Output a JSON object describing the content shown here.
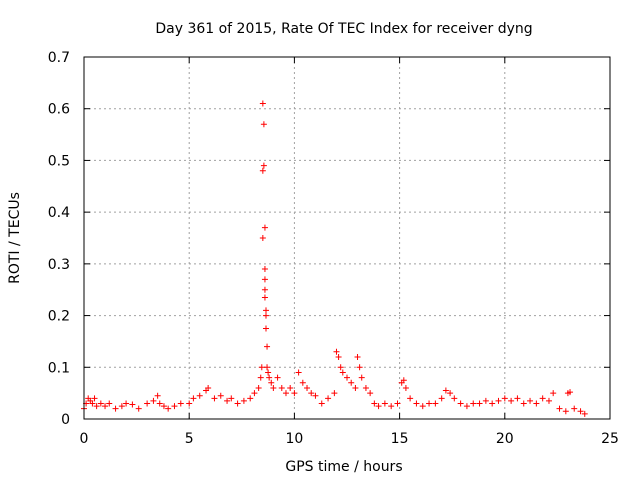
{
  "chart_data": {
    "type": "scatter",
    "title": "Day 361 of 2015, Rate Of TEC Index for receiver dyng",
    "xlabel": "GPS time / hours",
    "ylabel": "ROTI / TECUs",
    "xlim": [
      0,
      25
    ],
    "ylim": [
      0,
      0.7
    ],
    "xticks": [
      "0",
      "5",
      "10",
      "15",
      "20",
      "25"
    ],
    "yticks": [
      "0",
      "0.1",
      "0.2",
      "0.3",
      "0.4",
      "0.5",
      "0.6",
      "0.7"
    ],
    "grid": true,
    "marker": "+",
    "color": "#ff0000",
    "series": [
      {
        "x": [
          0.0,
          0.1,
          0.2,
          0.3,
          0.4,
          0.5,
          0.6,
          0.8,
          1.0,
          1.2,
          1.5,
          1.8,
          2.0,
          2.3,
          2.6,
          3.0,
          3.3,
          3.5,
          3.6,
          3.8,
          4.0,
          4.3,
          4.6,
          5.0,
          5.2,
          5.5,
          5.8,
          5.9,
          6.2,
          6.5,
          6.8,
          7.0,
          7.3,
          7.6,
          7.9,
          8.1,
          8.3,
          8.4,
          8.45,
          8.5,
          8.5,
          8.5,
          8.55,
          8.55,
          8.6,
          8.6,
          8.6,
          8.6,
          8.6,
          8.65,
          8.65,
          8.65,
          8.7,
          8.7,
          8.75,
          8.8,
          8.9,
          9.0,
          9.2,
          9.4,
          9.6,
          9.8,
          10.0,
          10.2,
          10.4,
          10.6,
          10.8,
          11.0,
          11.3,
          11.6,
          11.9,
          12.0,
          12.1,
          12.2,
          12.3,
          12.5,
          12.7,
          12.9,
          13.0,
          13.1,
          13.2,
          13.4,
          13.6,
          13.8,
          14.0,
          14.3,
          14.6,
          14.9,
          15.1,
          15.2,
          15.3,
          15.5,
          15.8,
          16.1,
          16.4,
          16.7,
          17.0,
          17.2,
          17.4,
          17.6,
          17.9,
          18.2,
          18.5,
          18.8,
          19.1,
          19.4,
          19.7,
          20.0,
          20.3,
          20.6,
          20.9,
          21.2,
          21.5,
          21.8,
          22.1,
          22.3,
          22.6,
          22.9,
          23.0,
          23.1,
          23.3,
          23.6,
          23.8
        ],
        "y": [
          0.02,
          0.03,
          0.04,
          0.035,
          0.03,
          0.04,
          0.025,
          0.03,
          0.025,
          0.03,
          0.02,
          0.025,
          0.03,
          0.028,
          0.02,
          0.03,
          0.035,
          0.045,
          0.03,
          0.025,
          0.02,
          0.025,
          0.03,
          0.03,
          0.04,
          0.045,
          0.055,
          0.06,
          0.04,
          0.045,
          0.035,
          0.04,
          0.03,
          0.035,
          0.04,
          0.05,
          0.06,
          0.08,
          0.1,
          0.35,
          0.48,
          0.61,
          0.49,
          0.57,
          0.37,
          0.29,
          0.27,
          0.25,
          0.235,
          0.21,
          0.2,
          0.175,
          0.14,
          0.1,
          0.09,
          0.08,
          0.07,
          0.06,
          0.08,
          0.06,
          0.05,
          0.06,
          0.05,
          0.09,
          0.07,
          0.06,
          0.05,
          0.045,
          0.03,
          0.04,
          0.05,
          0.13,
          0.12,
          0.1,
          0.09,
          0.08,
          0.07,
          0.06,
          0.12,
          0.1,
          0.08,
          0.06,
          0.05,
          0.03,
          0.025,
          0.03,
          0.025,
          0.03,
          0.07,
          0.075,
          0.06,
          0.04,
          0.03,
          0.025,
          0.03,
          0.03,
          0.04,
          0.055,
          0.05,
          0.04,
          0.03,
          0.025,
          0.03,
          0.03,
          0.035,
          0.03,
          0.035,
          0.04,
          0.035,
          0.04,
          0.03,
          0.035,
          0.03,
          0.04,
          0.035,
          0.05,
          0.02,
          0.015,
          0.05,
          0.052,
          0.02,
          0.015,
          0.01
        ]
      }
    ]
  }
}
